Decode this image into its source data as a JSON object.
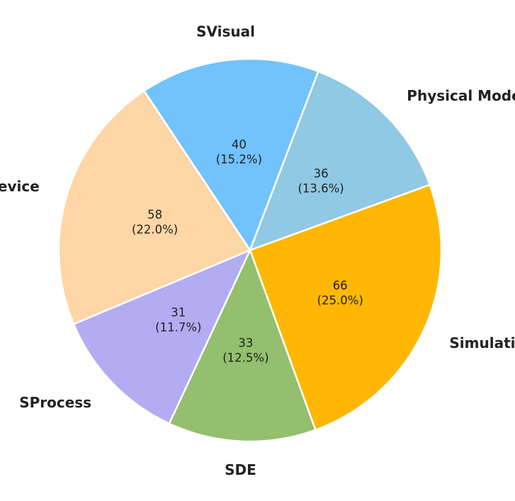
{
  "chart_data": {
    "type": "pie",
    "title": "",
    "slices": [
      {
        "label": "Simulation",
        "value": 66,
        "percent": "25.0%",
        "color": "#FFB703"
      },
      {
        "label": "SDE",
        "value": 33,
        "percent": "12.5%",
        "color": "#93BF6E"
      },
      {
        "label": "SProcess",
        "value": 31,
        "percent": "11.7%",
        "color": "#B3ACF2"
      },
      {
        "label": "SDevice",
        "value": 58,
        "percent": "22.0%",
        "color": "#FFD6A6"
      },
      {
        "label": "SVisual",
        "value": 40,
        "percent": "15.2%",
        "color": "#72C2FC"
      },
      {
        "label": "Physical Model",
        "value": 36,
        "percent": "13.6%",
        "color": "#90C9E4"
      }
    ],
    "start_angle_deg": 20,
    "direction": "clockwise"
  }
}
